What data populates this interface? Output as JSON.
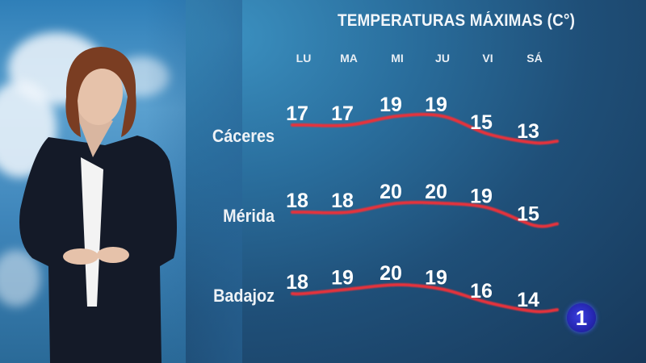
{
  "chart_data": {
    "type": "line",
    "title": "TEMPERATURAS MÁXIMAS (C°)",
    "categories": [
      "LU",
      "MA",
      "MI",
      "JU",
      "VI",
      "SÁ"
    ],
    "series": [
      {
        "name": "Cáceres",
        "values": [
          17,
          17,
          19,
          19,
          15,
          13
        ]
      },
      {
        "name": "Mérida",
        "values": [
          18,
          18,
          20,
          20,
          19,
          15
        ]
      },
      {
        "name": "Badajoz",
        "values": [
          18,
          19,
          20,
          19,
          16,
          14
        ]
      }
    ],
    "line_color": "#e8333a",
    "grid": false
  },
  "channel_logo": "1"
}
